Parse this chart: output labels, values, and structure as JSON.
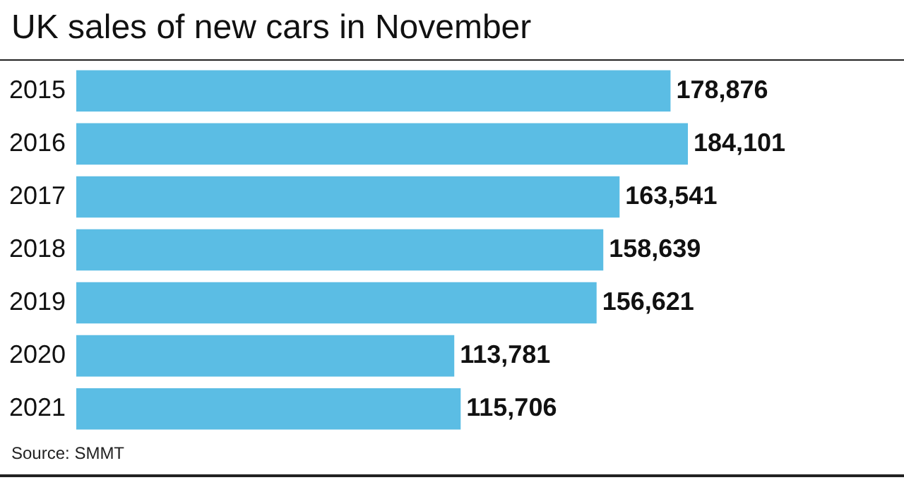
{
  "chart_data": {
    "type": "bar",
    "orientation": "horizontal",
    "title": "UK sales of new cars in November",
    "categories": [
      "2015",
      "2016",
      "2017",
      "2018",
      "2019",
      "2020",
      "2021"
    ],
    "values": [
      178876,
      184101,
      163541,
      158639,
      156621,
      113781,
      115706
    ],
    "value_labels": [
      "178,876",
      "184,101",
      "163,541",
      "158,639",
      "156,621",
      "113,781",
      "115,706"
    ],
    "color": "#5bbde4",
    "annotations": [
      "Source: SMMT"
    ]
  }
}
